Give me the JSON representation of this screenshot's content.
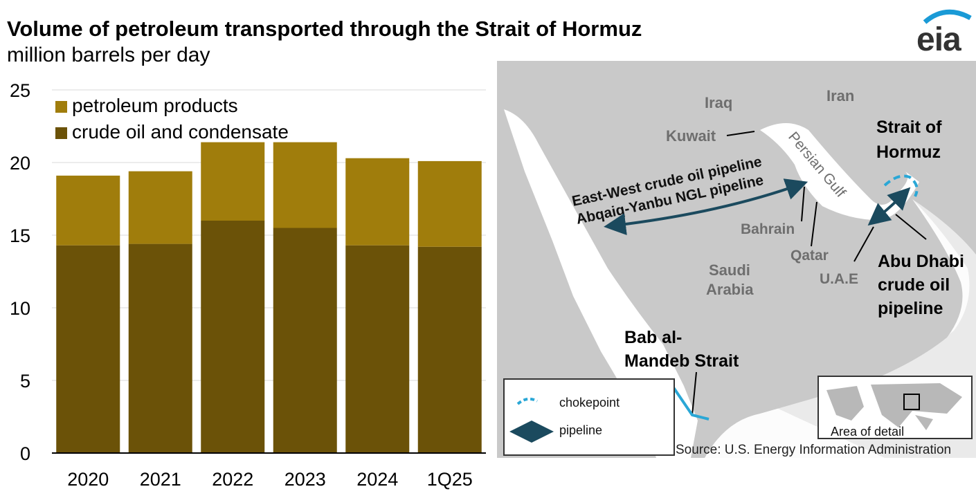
{
  "header": {
    "title": "Volume of petroleum transported through the Strait of Hormuz",
    "subtitle": "million barrels per day"
  },
  "logo": {
    "text": "eia"
  },
  "chart_data": {
    "type": "bar",
    "stacked": true,
    "categories": [
      "2020",
      "2021",
      "2022",
      "2023",
      "2024",
      "1Q25"
    ],
    "series": [
      {
        "name": "crude oil and condensate",
        "color": "#6b5208",
        "values": [
          14.3,
          14.4,
          16.0,
          15.5,
          14.3,
          14.2
        ]
      },
      {
        "name": "petroleum products",
        "color": "#a07d0c",
        "values": [
          4.8,
          5.0,
          5.4,
          5.9,
          6.0,
          5.9
        ]
      }
    ],
    "ylim": [
      0,
      25
    ],
    "yticks": [
      "0",
      "5",
      "10",
      "15",
      "20",
      "25"
    ],
    "grid": true,
    "legend_position": "top-left"
  },
  "map": {
    "labels": {
      "iraq": "Iraq",
      "iran": "Iran",
      "kuwait": "Kuwait",
      "persian_gulf": "Persian Gulf",
      "strait_hormuz_1": "Strait of",
      "strait_hormuz_2": "Hormuz",
      "pipeline_ew": "East-West crude oil pipeline",
      "pipeline_ngl": "Abqaiq-Yanbu NGL pipeline",
      "bahrain": "Bahrain",
      "qatar": "Qatar",
      "uae": "U.A.E",
      "saudi_1": "Saudi",
      "saudi_2": "Arabia",
      "abudhabi_1": "Abu Dhabi",
      "abudhabi_2": "crude oil",
      "abudhabi_3": "pipeline",
      "bab_1": "Bab al-",
      "bab_2": "Mandeb Strait"
    },
    "legend": {
      "chokepoint": "chokepoint",
      "pipeline": "pipeline"
    },
    "inset_label": "Area of detail",
    "colors": {
      "land": "#c9c9c9",
      "water": "#ffffff",
      "chokepoint": "#2aa7d6",
      "pipeline": "#1b4a5e"
    }
  },
  "source": "Source: U.S. Energy Information Administration"
}
